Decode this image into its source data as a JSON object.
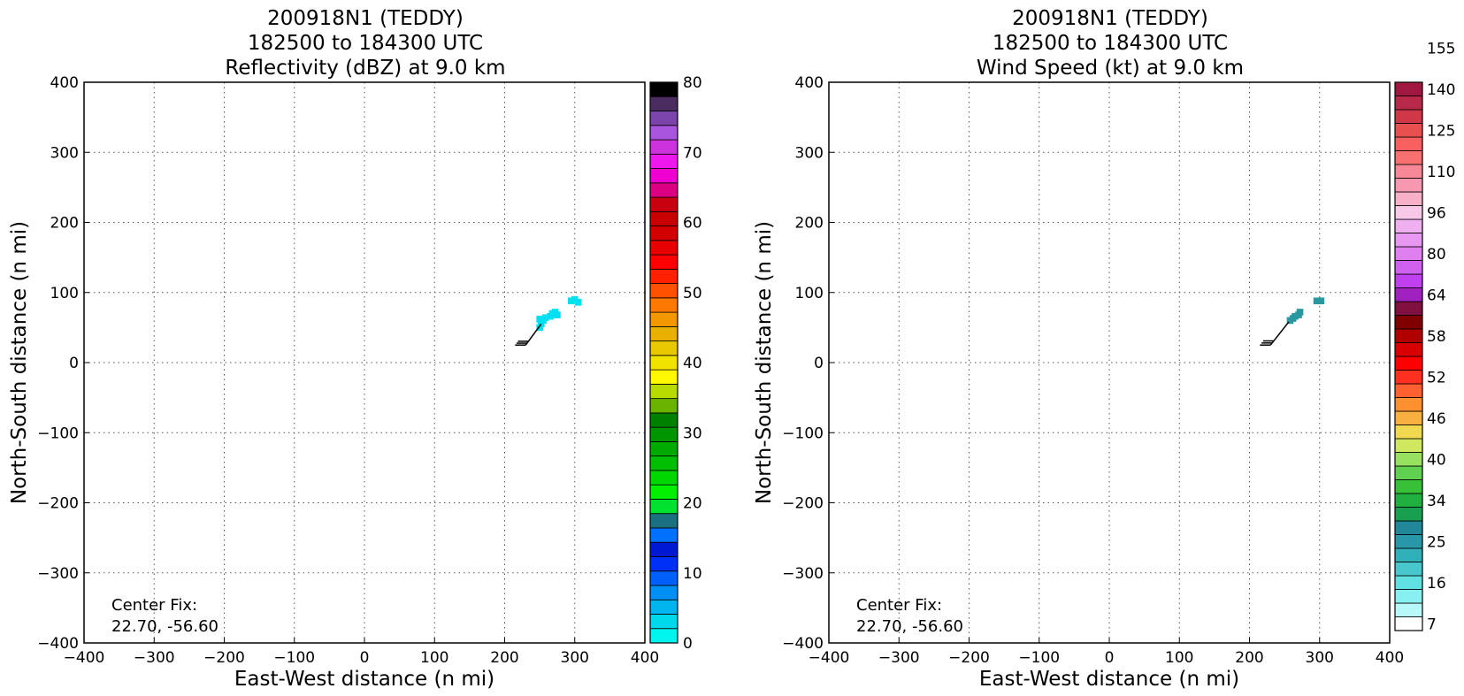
{
  "chart_data": [
    {
      "type": "heatmap",
      "title_lines": [
        "200918N1 (TEDDY)",
        "182500 to 184300 UTC",
        "Reflectivity (dBZ) at 9.0 km"
      ],
      "xlabel": "East-West distance (n mi)",
      "ylabel": "North-South distance (n mi)",
      "xlim": [
        -400,
        400
      ],
      "ylim": [
        -400,
        400
      ],
      "xticks": [
        "−400",
        "−300",
        "−200",
        "−100",
        "0",
        "100",
        "200",
        "300",
        "400"
      ],
      "yticks": [
        "400",
        "300",
        "200",
        "100",
        "0",
        "−100",
        "−200",
        "−300",
        "−400"
      ],
      "grid": true,
      "annotation": [
        "Center Fix:",
        "22.70, -56.60"
      ],
      "colorbar": {
        "min": 0,
        "max": 80,
        "tick_labels": [
          "0",
          "10",
          "20",
          "30",
          "40",
          "50",
          "60",
          "70",
          "80"
        ],
        "colors": [
          "#00f5ef",
          "#00d8ec",
          "#00b4ee",
          "#0090f5",
          "#0060f8",
          "#0030f5",
          "#0018d2",
          "#0070ff",
          "#1b7080",
          "#00e130",
          "#00f000",
          "#00d600",
          "#00be00",
          "#00aa00",
          "#009500",
          "#008000",
          "#6ab400",
          "#b8dc00",
          "#fff800",
          "#f2e200",
          "#e8c800",
          "#e8b000",
          "#f39800",
          "#ff7800",
          "#ff5000",
          "#ff2000",
          "#ff0000",
          "#e80000",
          "#d30000",
          "#c80000",
          "#c80010",
          "#dc0080",
          "#f000d0",
          "#ee18ee",
          "#cc33dd",
          "#a955dd",
          "#7a44aa",
          "#4a2c60",
          "#000000"
        ]
      },
      "data_cells": {
        "color": "#00e0f0",
        "points": [
          [
            250,
            50
          ],
          [
            252,
            55
          ],
          [
            255,
            60
          ],
          [
            250,
            62
          ],
          [
            258,
            64
          ],
          [
            265,
            66
          ],
          [
            268,
            70
          ],
          [
            272,
            72
          ],
          [
            275,
            68
          ],
          [
            295,
            88
          ],
          [
            300,
            90
          ],
          [
            305,
            86
          ]
        ]
      },
      "wind_barb": {
        "x_start": 230,
        "y_start": 25,
        "x_end": 252,
        "y_end": 55
      }
    },
    {
      "type": "heatmap",
      "title_lines": [
        "200918N1 (TEDDY)",
        "182500 to 184300 UTC",
        "Wind Speed (kt) at 9.0 km"
      ],
      "xlabel": "East-West distance (n mi)",
      "ylabel": "North-South distance (n mi)",
      "xlim": [
        -400,
        400
      ],
      "ylim": [
        -400,
        400
      ],
      "xticks": [
        "−400",
        "−300",
        "−200",
        "−100",
        "0",
        "100",
        "200",
        "300",
        "400"
      ],
      "yticks": [
        "400",
        "300",
        "200",
        "100",
        "0",
        "−100",
        "−200",
        "−300",
        "−400"
      ],
      "grid": true,
      "annotation": [
        "Center Fix:",
        "22.70, -56.60"
      ],
      "colorbar": {
        "tick_labels": [
          "7",
          "16",
          "25",
          "34",
          "40",
          "46",
          "52",
          "58",
          "64",
          "80",
          "96",
          "110",
          "125",
          "140",
          "155"
        ],
        "colors": [
          "#ffffff",
          "#b8f8f8",
          "#88f0f0",
          "#60e0e0",
          "#48c8cc",
          "#30b0b8",
          "#2898a8",
          "#208898",
          "#18a050",
          "#20b040",
          "#38c038",
          "#60d050",
          "#98e060",
          "#d0e860",
          "#f0d850",
          "#f8b040",
          "#ff9030",
          "#ff6030",
          "#ff3020",
          "#ff0000",
          "#d80000",
          "#b00000",
          "#800000",
          "#801040",
          "#a020c0",
          "#c040f0",
          "#d060f0",
          "#e080f0",
          "#e898f0",
          "#f0b0f0",
          "#f8c8e8",
          "#f8b0c8",
          "#f898b0",
          "#f88898",
          "#f87070",
          "#f86060",
          "#e85050",
          "#d03848",
          "#b82848",
          "#a01840"
        ]
      },
      "data_cells": {
        "color": "#2a98a0",
        "points": [
          [
            258,
            60
          ],
          [
            262,
            63
          ],
          [
            265,
            66
          ],
          [
            270,
            68
          ],
          [
            272,
            72
          ],
          [
            296,
            88
          ],
          [
            302,
            88
          ]
        ]
      },
      "wind_barb": {
        "x_start": 230,
        "y_start": 25,
        "x_end": 256,
        "y_end": 58
      }
    }
  ]
}
